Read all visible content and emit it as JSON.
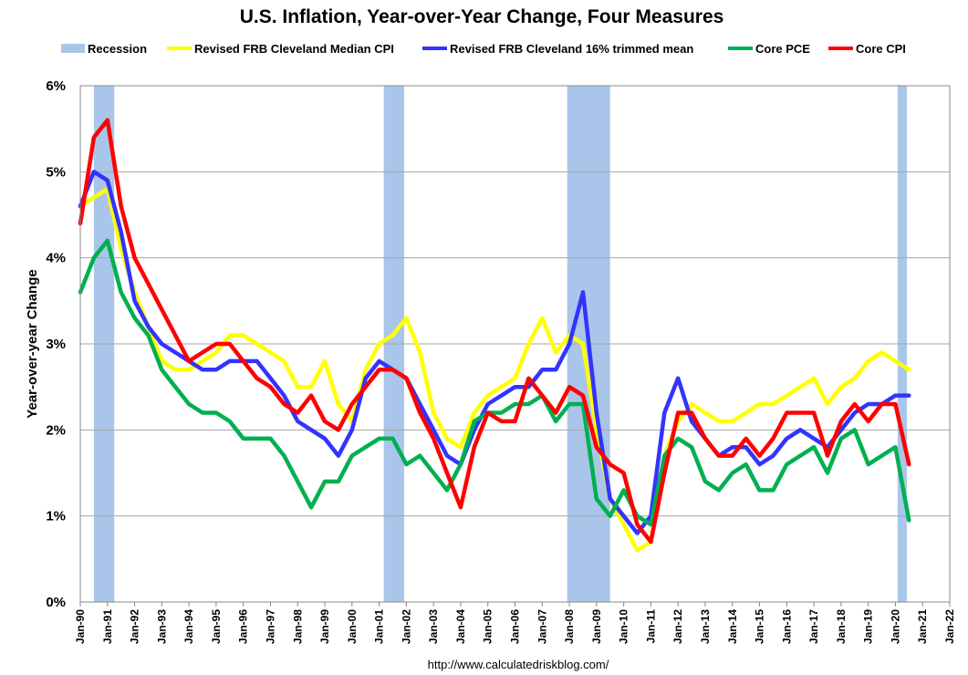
{
  "chart_data": {
    "type": "line",
    "title": "U.S. Inflation, Year-over-Year Change, Four Measures",
    "ylabel": "Year-over-year Change",
    "xlabel": "",
    "source": "http://www.calculatedriskblog.com/",
    "ylim": [
      0,
      6
    ],
    "xlim": [
      1990.0,
      2022.0
    ],
    "y_ticks": [
      "0%",
      "1%",
      "2%",
      "3%",
      "4%",
      "5%",
      "6%"
    ],
    "x_ticks": [
      "Jan-90",
      "Jan-91",
      "Jan-92",
      "Jan-93",
      "Jan-94",
      "Jan-95",
      "Jan-96",
      "Jan-97",
      "Jan-98",
      "Jan-99",
      "Jan-00",
      "Jan-01",
      "Jan-02",
      "Jan-03",
      "Jan-04",
      "Jan-05",
      "Jan-06",
      "Jan-07",
      "Jan-08",
      "Jan-09",
      "Jan-10",
      "Jan-11",
      "Jan-12",
      "Jan-13",
      "Jan-14",
      "Jan-15",
      "Jan-16",
      "Jan-17",
      "Jan-18",
      "Jan-19",
      "Jan-20",
      "Jan-21",
      "Jan-22"
    ],
    "grid": true,
    "legend_position": "top",
    "recessions": {
      "name": "Recession",
      "color": "#a9c6ea",
      "periods": [
        [
          1990.5,
          1991.25
        ],
        [
          2001.17,
          2001.92
        ],
        [
          2007.92,
          2009.5
        ],
        [
          2020.08,
          2020.42
        ]
      ]
    },
    "series": [
      {
        "name": "Revised FRB Cleveland Median CPI",
        "color": "#ffff00",
        "x": [
          1990.0,
          1990.5,
          1991.0,
          1991.5,
          1992.0,
          1992.5,
          1993.0,
          1993.5,
          1994.0,
          1994.5,
          1995.0,
          1995.5,
          1996.0,
          1996.5,
          1997.0,
          1997.5,
          1998.0,
          1998.5,
          1999.0,
          1999.5,
          2000.0,
          2000.5,
          2001.0,
          2001.5,
          2002.0,
          2002.5,
          2003.0,
          2003.5,
          2004.0,
          2004.5,
          2005.0,
          2005.5,
          2006.0,
          2006.5,
          2007.0,
          2007.5,
          2008.0,
          2008.5,
          2009.0,
          2009.5,
          2010.0,
          2010.5,
          2011.0,
          2011.5,
          2012.0,
          2012.5,
          2013.0,
          2013.5,
          2014.0,
          2014.5,
          2015.0,
          2015.5,
          2016.0,
          2016.5,
          2017.0,
          2017.5,
          2018.0,
          2018.5,
          2019.0,
          2019.5,
          2020.0,
          2020.5
        ],
        "values": [
          4.6,
          4.7,
          4.8,
          4.1,
          3.6,
          3.2,
          2.8,
          2.7,
          2.7,
          2.8,
          2.9,
          3.1,
          3.1,
          3.0,
          2.9,
          2.8,
          2.5,
          2.5,
          2.8,
          2.3,
          2.1,
          2.7,
          3.0,
          3.1,
          3.3,
          2.9,
          2.2,
          1.9,
          1.8,
          2.2,
          2.4,
          2.5,
          2.6,
          3.0,
          3.3,
          2.9,
          3.1,
          3.0,
          2.0,
          1.2,
          0.9,
          0.6,
          0.7,
          1.7,
          2.1,
          2.3,
          2.2,
          2.1,
          2.1,
          2.2,
          2.3,
          2.3,
          2.4,
          2.5,
          2.6,
          2.3,
          2.5,
          2.6,
          2.8,
          2.9,
          2.8,
          2.7
        ]
      },
      {
        "name": "Revised FRB Cleveland 16% trimmed mean",
        "color": "#3333ff",
        "x": [
          1990.0,
          1990.5,
          1991.0,
          1991.5,
          1992.0,
          1992.5,
          1993.0,
          1993.5,
          1994.0,
          1994.5,
          1995.0,
          1995.5,
          1996.0,
          1996.5,
          1997.0,
          1997.5,
          1998.0,
          1998.5,
          1999.0,
          1999.5,
          2000.0,
          2000.5,
          2001.0,
          2001.5,
          2002.0,
          2002.5,
          2003.0,
          2003.5,
          2004.0,
          2004.5,
          2005.0,
          2005.5,
          2006.0,
          2006.5,
          2007.0,
          2007.5,
          2008.0,
          2008.5,
          2009.0,
          2009.5,
          2010.0,
          2010.5,
          2011.0,
          2011.5,
          2012.0,
          2012.5,
          2013.0,
          2013.5,
          2014.0,
          2014.5,
          2015.0,
          2015.5,
          2016.0,
          2016.5,
          2017.0,
          2017.5,
          2018.0,
          2018.5,
          2019.0,
          2019.5,
          2020.0,
          2020.5
        ],
        "values": [
          4.6,
          5.0,
          4.9,
          4.3,
          3.5,
          3.2,
          3.0,
          2.9,
          2.8,
          2.7,
          2.7,
          2.8,
          2.8,
          2.8,
          2.6,
          2.4,
          2.1,
          2.0,
          1.9,
          1.7,
          2.0,
          2.6,
          2.8,
          2.7,
          2.6,
          2.3,
          2.0,
          1.7,
          1.6,
          2.0,
          2.3,
          2.4,
          2.5,
          2.5,
          2.7,
          2.7,
          3.0,
          3.6,
          2.2,
          1.2,
          1.0,
          0.8,
          1.0,
          2.2,
          2.6,
          2.1,
          1.9,
          1.7,
          1.8,
          1.8,
          1.6,
          1.7,
          1.9,
          2.0,
          1.9,
          1.8,
          2.0,
          2.2,
          2.3,
          2.3,
          2.4,
          2.4
        ]
      },
      {
        "name": "Core PCE",
        "color": "#00b050",
        "x": [
          1990.0,
          1990.5,
          1991.0,
          1991.5,
          1992.0,
          1992.5,
          1993.0,
          1993.5,
          1994.0,
          1994.5,
          1995.0,
          1995.5,
          1996.0,
          1996.5,
          1997.0,
          1997.5,
          1998.0,
          1998.5,
          1999.0,
          1999.5,
          2000.0,
          2000.5,
          2001.0,
          2001.5,
          2002.0,
          2002.5,
          2003.0,
          2003.5,
          2004.0,
          2004.5,
          2005.0,
          2005.5,
          2006.0,
          2006.5,
          2007.0,
          2007.5,
          2008.0,
          2008.5,
          2009.0,
          2009.5,
          2010.0,
          2010.5,
          2011.0,
          2011.5,
          2012.0,
          2012.5,
          2013.0,
          2013.5,
          2014.0,
          2014.5,
          2015.0,
          2015.5,
          2016.0,
          2016.5,
          2017.0,
          2017.5,
          2018.0,
          2018.5,
          2019.0,
          2019.5,
          2020.0,
          2020.5
        ],
        "values": [
          3.6,
          4.0,
          4.2,
          3.6,
          3.3,
          3.1,
          2.7,
          2.5,
          2.3,
          2.2,
          2.2,
          2.1,
          1.9,
          1.9,
          1.9,
          1.7,
          1.4,
          1.1,
          1.4,
          1.4,
          1.7,
          1.8,
          1.9,
          1.9,
          1.6,
          1.7,
          1.5,
          1.3,
          1.6,
          2.1,
          2.2,
          2.2,
          2.3,
          2.3,
          2.4,
          2.1,
          2.3,
          2.3,
          1.2,
          1.0,
          1.3,
          1.0,
          0.9,
          1.7,
          1.9,
          1.8,
          1.4,
          1.3,
          1.5,
          1.6,
          1.3,
          1.3,
          1.6,
          1.7,
          1.8,
          1.5,
          1.9,
          2.0,
          1.6,
          1.7,
          1.8,
          0.95
        ]
      },
      {
        "name": "Core CPI",
        "color": "#ff0000",
        "x": [
          1990.0,
          1990.5,
          1991.0,
          1991.5,
          1992.0,
          1992.5,
          1993.0,
          1993.5,
          1994.0,
          1994.5,
          1995.0,
          1995.5,
          1996.0,
          1996.5,
          1997.0,
          1997.5,
          1998.0,
          1998.5,
          1999.0,
          1999.5,
          2000.0,
          2000.5,
          2001.0,
          2001.5,
          2002.0,
          2002.5,
          2003.0,
          2003.5,
          2004.0,
          2004.5,
          2005.0,
          2005.5,
          2006.0,
          2006.5,
          2007.0,
          2007.5,
          2008.0,
          2008.5,
          2009.0,
          2009.5,
          2010.0,
          2010.5,
          2011.0,
          2011.5,
          2012.0,
          2012.5,
          2013.0,
          2013.5,
          2014.0,
          2014.5,
          2015.0,
          2015.5,
          2016.0,
          2016.5,
          2017.0,
          2017.5,
          2018.0,
          2018.5,
          2019.0,
          2019.5,
          2020.0,
          2020.5
        ],
        "values": [
          4.4,
          5.4,
          5.6,
          4.6,
          4.0,
          3.7,
          3.4,
          3.1,
          2.8,
          2.9,
          3.0,
          3.0,
          2.8,
          2.6,
          2.5,
          2.3,
          2.2,
          2.4,
          2.1,
          2.0,
          2.3,
          2.5,
          2.7,
          2.7,
          2.6,
          2.2,
          1.9,
          1.5,
          1.1,
          1.8,
          2.2,
          2.1,
          2.1,
          2.6,
          2.4,
          2.2,
          2.5,
          2.4,
          1.8,
          1.6,
          1.5,
          0.9,
          0.7,
          1.5,
          2.2,
          2.2,
          1.9,
          1.7,
          1.7,
          1.9,
          1.7,
          1.9,
          2.2,
          2.2,
          2.2,
          1.7,
          2.1,
          2.3,
          2.1,
          2.3,
          2.3,
          1.6
        ]
      }
    ]
  }
}
